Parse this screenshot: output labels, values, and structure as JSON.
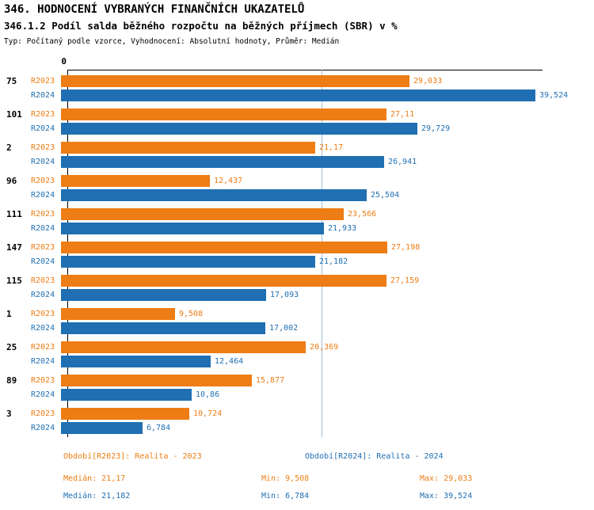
{
  "header": {
    "title": "346. HODNOCENÍ VYBRANÝCH FINANČNÍCH UKAZATELŮ",
    "subtitle": "346.1.2 Podíl salda běžného rozpočtu na běžných příjmech (SBR) v %",
    "meta": "Typ: Počítaný podle vzorce, Vyhodnocení: Absolutní hodnoty, Průměr: Medián"
  },
  "colors": {
    "r2023": "#ED7D14",
    "r2024": "#1F6FB2",
    "median_line": "#9fbdd3",
    "axis": "#000000"
  },
  "chart_data": {
    "type": "bar",
    "orientation": "horizontal",
    "zero_label": "0",
    "xlim": [
      0,
      39.6
    ],
    "median_line_value": 21.17,
    "grid": false,
    "legend_position": "bottom",
    "categories": [
      "75",
      "101",
      "2",
      "96",
      "111",
      "147",
      "115",
      "1",
      "25",
      "89",
      "3"
    ],
    "series": [
      {
        "name": "R2023",
        "color": "#ED7D14",
        "values": [
          29.033,
          27.11,
          21.17,
          12.437,
          23.566,
          27.198,
          27.159,
          9.508,
          20.369,
          15.877,
          10.724
        ],
        "labels": [
          "29,033",
          "27,11",
          "21,17",
          "12,437",
          "23,566",
          "27,198",
          "27,159",
          "9,508",
          "20,369",
          "15,877",
          "10,724"
        ]
      },
      {
        "name": "R2024",
        "color": "#1F6FB2",
        "values": [
          39.524,
          29.729,
          26.941,
          25.504,
          21.933,
          21.182,
          17.093,
          17.002,
          12.464,
          10.86,
          6.784
        ],
        "labels": [
          "39,524",
          "29,729",
          "26,941",
          "25,504",
          "21,933",
          "21,182",
          "17,093",
          "17,002",
          "12,464",
          "10,86",
          "6,784"
        ]
      }
    ]
  },
  "legend": {
    "r2023_title": "Období[R2023]: Realita - 2023",
    "r2024_title": "Období[R2024]: Realita - 2024",
    "r2023_median": "Medián: 21,17",
    "r2023_min": "Min: 9,508",
    "r2023_max": "Max: 29,033",
    "r2024_median": "Medián: 21,182",
    "r2024_min": "Min: 6,784",
    "r2024_max": "Max: 39,524"
  }
}
